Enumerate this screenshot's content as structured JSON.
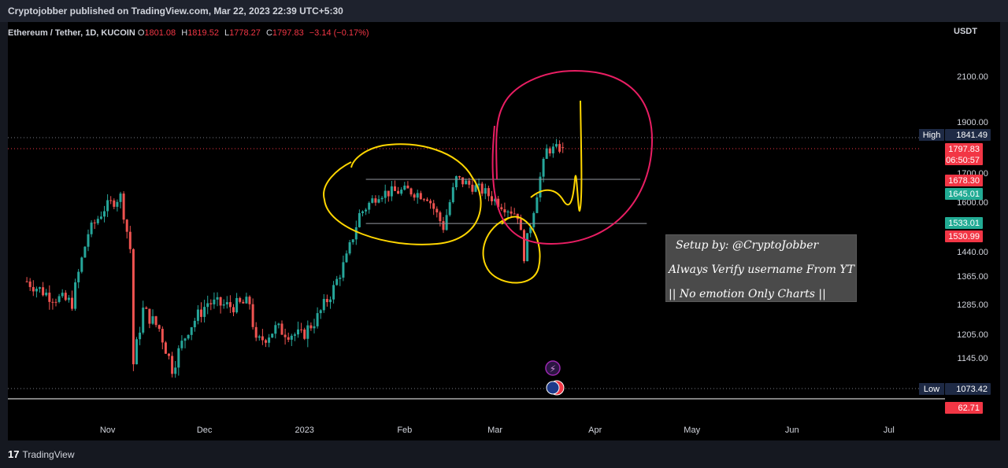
{
  "header": {
    "text": "Cryptojobber published on TradingView.com, Mar 22, 2023 22:39 UTC+5:30"
  },
  "legend": {
    "symbol": "Ethereum / Tether, 1D, KUCOIN",
    "open_key": "O",
    "open": "1801.08",
    "high_key": "H",
    "high": "1819.52",
    "low_key": "L",
    "low": "1778.27",
    "close_key": "C",
    "close": "1797.83",
    "change": "−3.14 (−0.17%)"
  },
  "currency": "USDT",
  "setup_box": {
    "line1": "Setup by: @CryptoJobber",
    "line2": "Always Verify username From YT",
    "line3": "|| No emotion Only Charts ||"
  },
  "footer": {
    "brand": "TradingView",
    "logo": "17"
  },
  "chart_data": {
    "type": "candlestick",
    "symbol": "Ethereum / Tether",
    "timeframe": "1D",
    "exchange": "KUCOIN",
    "y_ticks": [
      1145,
      1205,
      1285,
      1365,
      1440,
      1600,
      1700,
      1900,
      2100
    ],
    "y_tick_labels": [
      "1145.00",
      "1205.00",
      "1285.00",
      "1365.00",
      "1440.00",
      "1600.00",
      "1700.00",
      "1900.00",
      "2100.00"
    ],
    "x_ticks": [
      "Nov",
      "Dec",
      "2023",
      "Feb",
      "Mar",
      "Apr",
      "May",
      "Jun",
      "Jul"
    ],
    "price_labels": [
      {
        "name": "High",
        "value": "1841.49",
        "color": "#1e2a45"
      },
      {
        "name": "",
        "value": "1797.83",
        "sub": "06:50:57",
        "color": "#f23645"
      },
      {
        "name": "",
        "value": "1678.30",
        "color": "#f23645"
      },
      {
        "name": "",
        "value": "1645.01",
        "color": "#22ab94"
      },
      {
        "name": "",
        "value": "1533.01",
        "color": "#22ab94"
      },
      {
        "name": "",
        "value": "1530.99",
        "color": "#f23645"
      },
      {
        "name": "Low",
        "value": "1073.42",
        "color": "#1e2a45"
      },
      {
        "name": "",
        "value": "62.71",
        "color": "#f23645"
      }
    ],
    "ohlc_last": {
      "open": 1801.08,
      "high": 1819.52,
      "low": 1778.27,
      "close": 1797.83
    },
    "waypoints": [
      [
        "2022-10-07",
        1350
      ],
      [
        "2022-10-14",
        1310
      ],
      [
        "2022-10-21",
        1290
      ],
      [
        "2022-10-26",
        1500
      ],
      [
        "2022-10-31",
        1580
      ],
      [
        "2022-11-05",
        1620
      ],
      [
        "2022-11-08",
        1450
      ],
      [
        "2022-11-09",
        1130
      ],
      [
        "2022-11-12",
        1270
      ],
      [
        "2022-11-17",
        1220
      ],
      [
        "2022-11-21",
        1120
      ],
      [
        "2022-11-26",
        1220
      ],
      [
        "2022-12-02",
        1290
      ],
      [
        "2022-12-09",
        1280
      ],
      [
        "2022-12-15",
        1290
      ],
      [
        "2022-12-17",
        1180
      ],
      [
        "2022-12-23",
        1220
      ],
      [
        "2022-12-31",
        1200
      ],
      [
        "2023-01-05",
        1250
      ],
      [
        "2023-01-10",
        1330
      ],
      [
        "2023-01-14",
        1420
      ],
      [
        "2023-01-18",
        1560
      ],
      [
        "2023-01-24",
        1630
      ],
      [
        "2023-02-02",
        1640
      ],
      [
        "2023-02-08",
        1620
      ],
      [
        "2023-02-13",
        1520
      ],
      [
        "2023-02-17",
        1680
      ],
      [
        "2023-02-25",
        1640
      ],
      [
        "2023-03-02",
        1600
      ],
      [
        "2023-03-08",
        1560
      ],
      [
        "2023-03-10",
        1430
      ],
      [
        "2023-03-13",
        1580
      ],
      [
        "2023-03-17",
        1790
      ],
      [
        "2023-03-22",
        1798
      ]
    ],
    "h_lines": [
      {
        "value": 1678.3,
        "color": "#9598a1",
        "style": "solid",
        "x_range": [
          "2023-01-20",
          "2023-04-15"
        ]
      },
      {
        "value": 1531,
        "color": "#9598a1",
        "style": "solid",
        "x_range": [
          "2023-01-20",
          "2023-04-17"
        ]
      }
    ],
    "annotations": [
      {
        "name": "yellow-range-ellipse",
        "color": "#ffd600"
      },
      {
        "name": "yellow-dip-ellipse",
        "color": "#ffd600"
      },
      {
        "name": "pink-breakout-ellipse",
        "color": "#e91e63"
      },
      {
        "name": "yellow-retest-path",
        "color": "#ffd600"
      }
    ]
  }
}
